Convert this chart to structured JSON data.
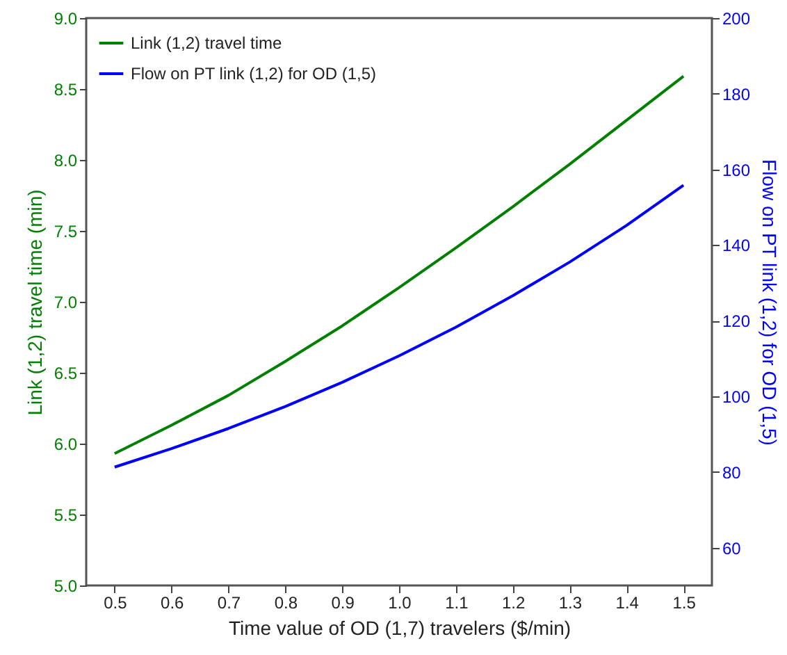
{
  "chart_data": {
    "type": "line",
    "xlabel": "Time value of OD (1,7) travelers ($/min)",
    "ylabel": "Link (1,2) travel time (min)",
    "y2label": "Flow on PT link (1,2) for OD (1,5)",
    "x": [
      0.5,
      0.6,
      0.7,
      0.8,
      0.9,
      1.0,
      1.1,
      1.2,
      1.3,
      1.4,
      1.5
    ],
    "series": [
      {
        "name": "Link (1,2) travel time",
        "color": "#008000",
        "values": [
          5.93,
          6.13,
          6.34,
          6.58,
          6.83,
          7.1,
          7.38,
          7.67,
          7.97,
          8.28,
          8.59
        ]
      },
      {
        "name": "Flow on PT link (1,2) for OD (1,5)",
        "color": "#0000ff",
        "axis": "y2",
        "values": [
          81.3,
          86.2,
          91.5,
          97.3,
          103.7,
          110.7,
          118.3,
          126.6,
          135.5,
          145.2,
          155.8
        ]
      }
    ],
    "xlim": [
      0.45,
      1.55
    ],
    "xticks": [
      0.5,
      0.6,
      0.7,
      0.8,
      0.9,
      {
        "value": 1.0,
        "label": "1.0"
      },
      1.1,
      1.2,
      1.3,
      1.4,
      1.5
    ],
    "ylim": [
      5,
      9
    ],
    "yticks": [
      {
        "value": 5,
        "label": "5.0"
      },
      5.5,
      {
        "value": 6,
        "label": "6.0"
      },
      6.5,
      {
        "value": 7,
        "label": "7.0"
      },
      7.5,
      {
        "value": 8,
        "label": "8.0"
      },
      8.5,
      {
        "value": 9,
        "label": "9.0"
      }
    ],
    "y2lim": [
      50,
      200
    ],
    "y2ticks": [
      60,
      80,
      100,
      120,
      140,
      160,
      180,
      200
    ],
    "legend": "top left",
    "grid": false,
    "line_style": "solid"
  }
}
